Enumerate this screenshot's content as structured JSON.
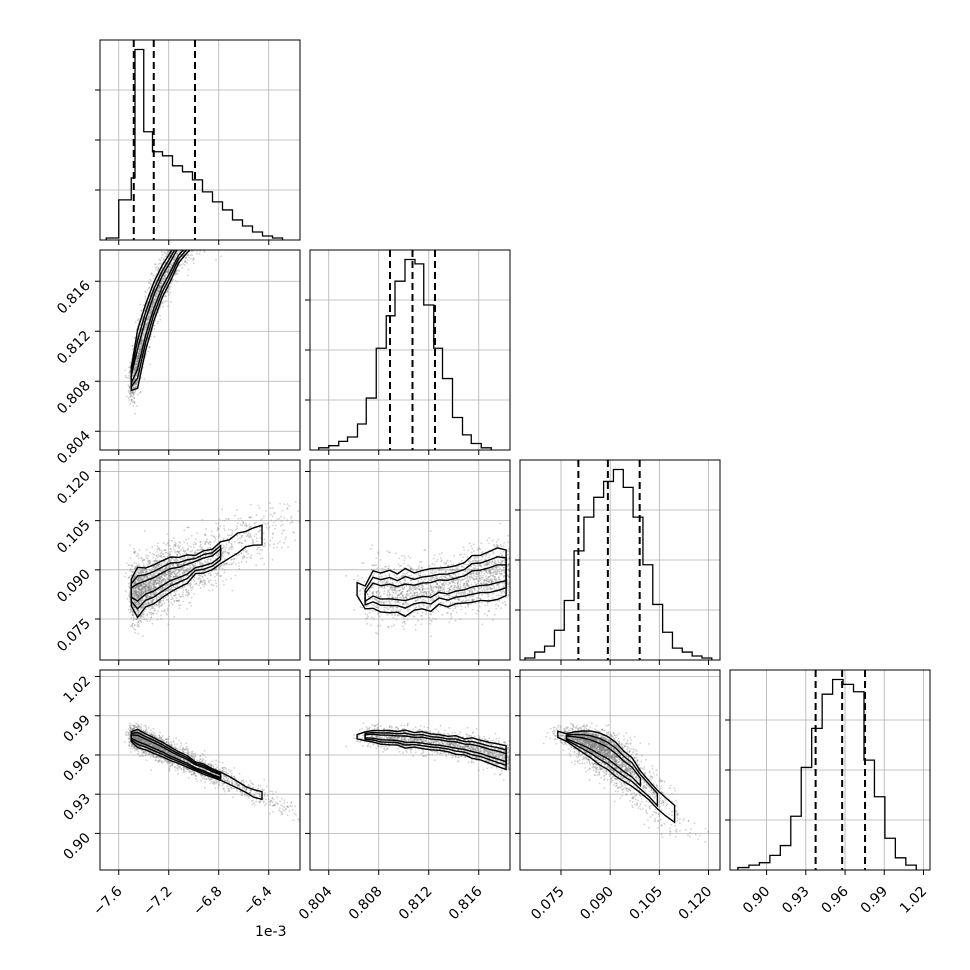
{
  "chart_data": {
    "type": "corner",
    "parameters": [
      {
        "key": "p1",
        "scale_label": "1e-3",
        "range": [
          -7.75,
          -6.15
        ],
        "ticks": [
          -7.6,
          -7.2,
          -6.8,
          -6.4
        ],
        "tick_labels": [
          "−7.6",
          "−7.2",
          "−6.8",
          "−6.4"
        ],
        "quantiles": [
          -7.48,
          -7.32,
          -6.99
        ],
        "histogram": {
          "bin_edges": [
            -7.7,
            -7.6,
            -7.5,
            -7.47,
            -7.4,
            -7.33,
            -7.25,
            -7.17,
            -7.09,
            -7.01,
            -6.93,
            -6.85,
            -6.77,
            -6.69,
            -6.61,
            -6.53,
            -6.45,
            -6.37,
            -6.29
          ],
          "counts": [
            0.01,
            0.2,
            0.31,
            0.95,
            0.54,
            0.44,
            0.42,
            0.37,
            0.34,
            0.3,
            0.24,
            0.19,
            0.15,
            0.1,
            0.07,
            0.04,
            0.02,
            0.01
          ]
        }
      },
      {
        "key": "p2",
        "range": [
          0.8025,
          0.8185
        ],
        "ticks": [
          0.804,
          0.808,
          0.812,
          0.816
        ],
        "tick_labels": [
          "0.804",
          "0.808",
          "0.812",
          "0.816"
        ],
        "quantiles": [
          0.8089,
          0.8107,
          0.8125
        ],
        "histogram": {
          "bin_edges": [
            0.8032,
            0.804,
            0.8048,
            0.8055,
            0.8063,
            0.807,
            0.8078,
            0.8086,
            0.8093,
            0.8101,
            0.8109,
            0.8116,
            0.8124,
            0.8131,
            0.8139,
            0.8147,
            0.8154,
            0.8162,
            0.817
          ],
          "counts": [
            0.01,
            0.02,
            0.04,
            0.06,
            0.12,
            0.24,
            0.47,
            0.62,
            0.78,
            0.88,
            0.86,
            0.67,
            0.47,
            0.33,
            0.15,
            0.07,
            0.03,
            0.01
          ]
        }
      },
      {
        "key": "p3",
        "range": [
          0.0625,
          0.1235
        ],
        "ticks": [
          0.075,
          0.09,
          0.105,
          0.12
        ],
        "tick_labels": [
          "0.075",
          "0.090",
          "0.105",
          "0.120"
        ],
        "quantiles": [
          0.0803,
          0.0893,
          0.099
        ],
        "histogram": {
          "bin_edges": [
            0.064,
            0.067,
            0.07,
            0.073,
            0.076,
            0.079,
            0.082,
            0.085,
            0.088,
            0.091,
            0.094,
            0.097,
            0.1,
            0.103,
            0.106,
            0.109,
            0.112,
            0.115,
            0.118,
            0.121
          ],
          "counts": [
            0.01,
            0.04,
            0.07,
            0.15,
            0.3,
            0.55,
            0.72,
            0.82,
            0.9,
            0.96,
            0.87,
            0.72,
            0.48,
            0.28,
            0.14,
            0.06,
            0.04,
            0.02,
            0.01
          ]
        }
      },
      {
        "key": "p4",
        "range": [
          0.872,
          1.025
        ],
        "ticks": [
          0.9,
          0.93,
          0.96,
          0.99,
          1.02
        ],
        "tick_labels": [
          "0.90",
          "0.93",
          "0.96",
          "0.99",
          "1.02"
        ],
        "quantiles": [
          0.9375,
          0.9578,
          0.9753
        ],
        "histogram": {
          "bin_edges": [
            0.878,
            0.8865,
            0.8945,
            0.9025,
            0.9105,
            0.9185,
            0.9265,
            0.9345,
            0.9425,
            0.9505,
            0.9585,
            0.9665,
            0.9745,
            0.9825,
            0.9905,
            0.9985,
            1.0065,
            1.0145
          ],
          "counts": [
            0.01,
            0.02,
            0.03,
            0.06,
            0.1,
            0.22,
            0.42,
            0.58,
            0.72,
            0.78,
            0.76,
            0.73,
            0.45,
            0.3,
            0.13,
            0.05,
            0.02
          ]
        }
      }
    ],
    "contour_levels_sigma": [
      0.5,
      1.0,
      1.5
    ],
    "grid": true,
    "colors": {
      "axes": "#000000",
      "grid": "#b0b0b0",
      "points": "#7f7f7f",
      "density_dark": "#000000"
    }
  }
}
